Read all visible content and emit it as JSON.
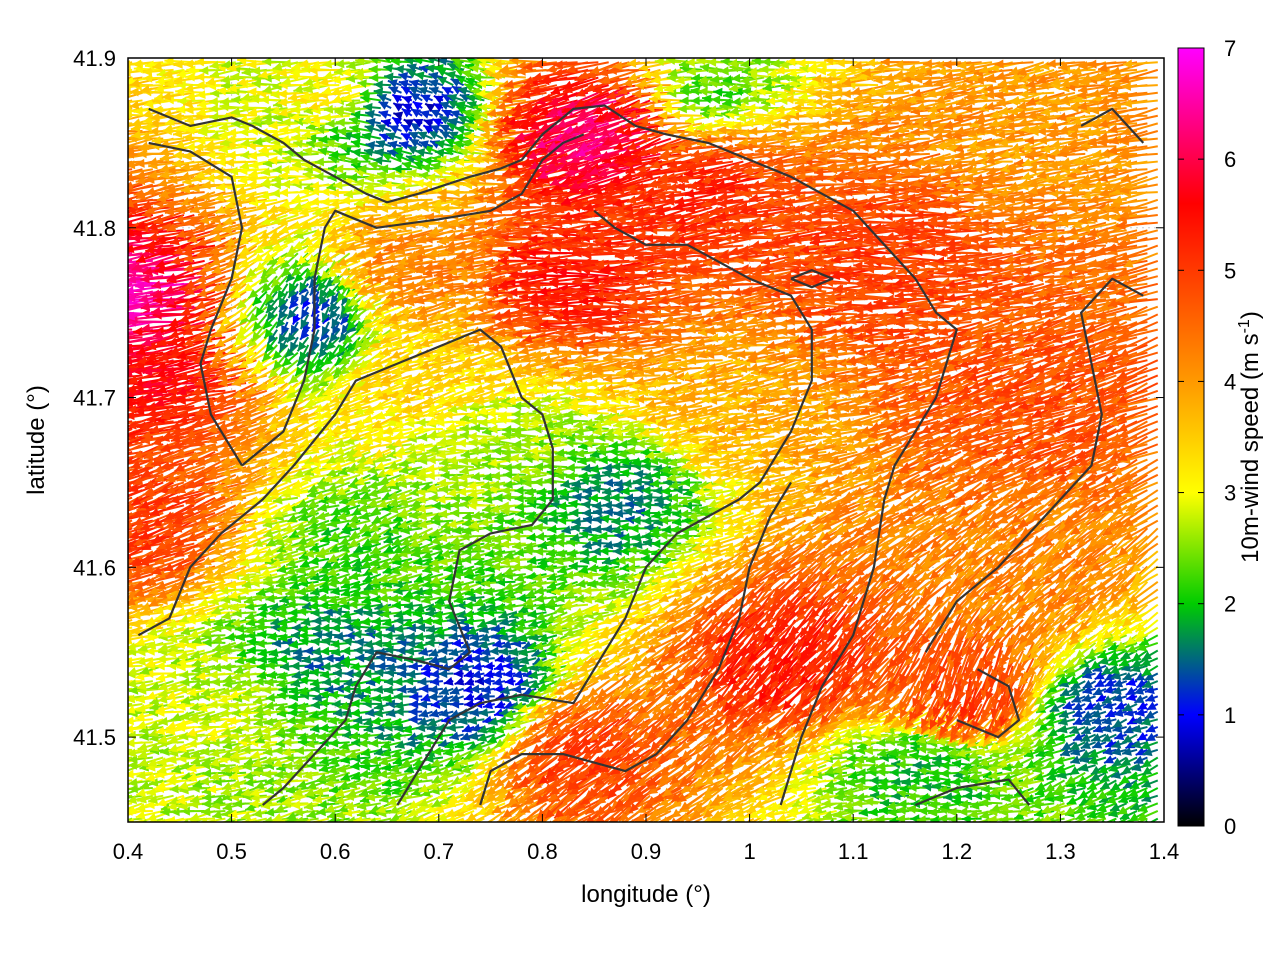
{
  "chart_data": {
    "type": "quiver",
    "title": "",
    "xlabel": "longitude (°)",
    "ylabel": "latitude (°)",
    "colorbar_label": "10m-wind speed (m s",
    "colorbar_label_sup": "-1",
    "colorbar_label_end": ")",
    "xlim": [
      0.4,
      1.4
    ],
    "ylim": [
      41.45,
      41.9
    ],
    "xticks": [
      0.4,
      0.5,
      0.6,
      0.7,
      0.8,
      0.9,
      1.0,
      1.1,
      1.2,
      1.3,
      1.4
    ],
    "xtick_labels": [
      "0.4",
      "0.5",
      "0.6",
      "0.7",
      "0.8",
      "0.9",
      "1",
      "1.1",
      "1.2",
      "1.3",
      "1.4"
    ],
    "yticks": [
      41.5,
      41.6,
      41.7,
      41.8,
      41.9
    ],
    "ytick_labels": [
      "41.5",
      "41.6",
      "41.7",
      "41.8",
      "41.9"
    ],
    "clim": [
      0,
      7
    ],
    "cticks": [
      0,
      1,
      2,
      3,
      4,
      5,
      6,
      7
    ],
    "ctick_labels": [
      "0",
      "1",
      "2",
      "3",
      "4",
      "5",
      "6",
      "7"
    ],
    "colormap": [
      "#000000",
      "#0000ff",
      "#00cc00",
      "#ffff00",
      "#ff9900",
      "#ff0000",
      "#ff00ff"
    ],
    "colormap_stops": [
      0,
      1,
      2,
      3,
      4,
      5.6,
      7
    ],
    "grid": true,
    "contour_color": "#333333",
    "wind_regions": [
      {
        "lon": 0.46,
        "lat": 41.72,
        "speed": 5.6,
        "dir_deg": 190
      },
      {
        "lon": 0.43,
        "lat": 41.76,
        "speed": 6.6,
        "dir_deg": 185
      },
      {
        "lon": 0.44,
        "lat": 41.63,
        "speed": 5.0,
        "dir_deg": 200
      },
      {
        "lon": 0.62,
        "lat": 41.88,
        "speed": 3.2,
        "dir_deg": 190
      },
      {
        "lon": 0.67,
        "lat": 41.87,
        "speed": 0.8,
        "dir_deg": 150
      },
      {
        "lon": 0.88,
        "lat": 41.86,
        "speed": 6.3,
        "dir_deg": 200
      },
      {
        "lon": 0.98,
        "lat": 41.83,
        "speed": 5.2,
        "dir_deg": 190
      },
      {
        "lon": 0.85,
        "lat": 41.77,
        "speed": 5.4,
        "dir_deg": 180
      },
      {
        "lon": 1.15,
        "lat": 41.78,
        "speed": 5.0,
        "dir_deg": 180
      },
      {
        "lon": 1.28,
        "lat": 41.7,
        "speed": 4.8,
        "dir_deg": 200
      },
      {
        "lon": 0.78,
        "lat": 41.67,
        "speed": 2.6,
        "dir_deg": 180
      },
      {
        "lon": 0.88,
        "lat": 41.64,
        "speed": 1.6,
        "dir_deg": 180
      },
      {
        "lon": 0.63,
        "lat": 41.62,
        "speed": 2.2,
        "dir_deg": 200
      },
      {
        "lon": 0.6,
        "lat": 41.55,
        "speed": 1.6,
        "dir_deg": 180
      },
      {
        "lon": 0.75,
        "lat": 41.53,
        "speed": 1.0,
        "dir_deg": 190
      },
      {
        "lon": 0.58,
        "lat": 41.75,
        "speed": 1.2,
        "dir_deg": 240
      },
      {
        "lon": 1.05,
        "lat": 41.56,
        "speed": 5.3,
        "dir_deg": 230
      },
      {
        "lon": 1.23,
        "lat": 41.54,
        "speed": 5.0,
        "dir_deg": 250
      },
      {
        "lon": 0.85,
        "lat": 41.5,
        "speed": 5.0,
        "dir_deg": 220
      },
      {
        "lon": 1.18,
        "lat": 41.48,
        "speed": 2.0,
        "dir_deg": 180
      },
      {
        "lon": 1.35,
        "lat": 41.52,
        "speed": 1.2,
        "dir_deg": 200
      },
      {
        "lon": 0.98,
        "lat": 41.88,
        "speed": 2.2,
        "dir_deg": 180
      },
      {
        "lon": 1.3,
        "lat": 41.86,
        "speed": 4.0,
        "dir_deg": 190
      },
      {
        "lon": 1.28,
        "lat": 41.6,
        "speed": 4.2,
        "dir_deg": 220
      },
      {
        "lon": 1.0,
        "lat": 41.7,
        "speed": 3.8,
        "dir_deg": 190
      },
      {
        "lon": 0.7,
        "lat": 41.78,
        "speed": 4.2,
        "dir_deg": 190
      },
      {
        "lon": 0.5,
        "lat": 41.52,
        "speed": 2.8,
        "dir_deg": 190
      },
      {
        "lon": 0.7,
        "lat": 41.72,
        "speed": 3.4,
        "dir_deg": 200
      }
    ],
    "contours": [
      [
        [
          0.42,
          41.87
        ],
        [
          0.46,
          41.86
        ],
        [
          0.5,
          41.865
        ],
        [
          0.52,
          41.86
        ],
        [
          0.55,
          41.85
        ],
        [
          0.57,
          41.84
        ],
        [
          0.6,
          41.83
        ],
        [
          0.63,
          41.82
        ],
        [
          0.65,
          41.815
        ],
        [
          0.68,
          41.82
        ],
        [
          0.73,
          41.83
        ],
        [
          0.76,
          41.835
        ],
        [
          0.78,
          41.84
        ],
        [
          0.8,
          41.855
        ],
        [
          0.83,
          41.87
        ],
        [
          0.86,
          41.872
        ],
        [
          0.89,
          41.86
        ],
        [
          0.92,
          41.855
        ],
        [
          0.96,
          41.85
        ],
        [
          1.0,
          41.84
        ],
        [
          1.04,
          41.83
        ],
        [
          1.07,
          41.82
        ],
        [
          1.1,
          41.81
        ],
        [
          1.13,
          41.79
        ],
        [
          1.16,
          41.77
        ],
        [
          1.18,
          41.75
        ],
        [
          1.2,
          41.74
        ],
        [
          1.19,
          41.72
        ],
        [
          1.18,
          41.7
        ],
        [
          1.16,
          41.68
        ],
        [
          1.14,
          41.66
        ],
        [
          1.13,
          41.64
        ],
        [
          1.12,
          41.6
        ],
        [
          1.1,
          41.56
        ],
        [
          1.07,
          41.53
        ],
        [
          1.05,
          41.5
        ],
        [
          1.03,
          41.46
        ]
      ],
      [
        [
          0.42,
          41.85
        ],
        [
          0.46,
          41.845
        ],
        [
          0.5,
          41.83
        ],
        [
          0.51,
          41.8
        ],
        [
          0.5,
          41.77
        ],
        [
          0.48,
          41.74
        ],
        [
          0.47,
          41.72
        ],
        [
          0.48,
          41.69
        ],
        [
          0.5,
          41.67
        ],
        [
          0.51,
          41.66
        ]
      ],
      [
        [
          0.51,
          41.66
        ],
        [
          0.55,
          41.68
        ],
        [
          0.57,
          41.71
        ],
        [
          0.58,
          41.74
        ],
        [
          0.58,
          41.77
        ],
        [
          0.59,
          41.8
        ],
        [
          0.6,
          41.81
        ],
        [
          0.64,
          41.8
        ],
        [
          0.7,
          41.805
        ],
        [
          0.75,
          41.81
        ],
        [
          0.78,
          41.82
        ],
        [
          0.8,
          41.84
        ],
        [
          0.82,
          41.85
        ],
        [
          0.84,
          41.855
        ]
      ],
      [
        [
          0.41,
          41.56
        ],
        [
          0.44,
          41.57
        ],
        [
          0.46,
          41.6
        ],
        [
          0.49,
          41.62
        ],
        [
          0.53,
          41.64
        ],
        [
          0.56,
          41.66
        ],
        [
          0.6,
          41.69
        ],
        [
          0.62,
          41.71
        ],
        [
          0.66,
          41.72
        ],
        [
          0.7,
          41.73
        ],
        [
          0.74,
          41.74
        ],
        [
          0.76,
          41.73
        ],
        [
          0.78,
          41.7
        ],
        [
          0.8,
          41.69
        ],
        [
          0.81,
          41.67
        ],
        [
          0.81,
          41.64
        ],
        [
          0.79,
          41.625
        ],
        [
          0.75,
          41.62
        ],
        [
          0.72,
          41.61
        ],
        [
          0.71,
          41.58
        ],
        [
          0.73,
          41.55
        ],
        [
          0.71,
          41.54
        ],
        [
          0.68,
          41.545
        ],
        [
          0.64,
          41.55
        ],
        [
          0.62,
          41.53
        ],
        [
          0.61,
          41.51
        ],
        [
          0.58,
          41.49
        ],
        [
          0.55,
          41.47
        ],
        [
          0.53,
          41.46
        ]
      ],
      [
        [
          0.66,
          41.46
        ],
        [
          0.69,
          41.49
        ],
        [
          0.71,
          41.51
        ],
        [
          0.74,
          41.52
        ],
        [
          0.78,
          41.525
        ],
        [
          0.83,
          41.52
        ],
        [
          0.85,
          41.54
        ],
        [
          0.88,
          41.57
        ],
        [
          0.9,
          41.6
        ],
        [
          0.93,
          41.62
        ],
        [
          0.96,
          41.63
        ],
        [
          0.99,
          41.64
        ],
        [
          1.01,
          41.65
        ],
        [
          1.04,
          41.68
        ],
        [
          1.06,
          41.71
        ],
        [
          1.06,
          41.74
        ],
        [
          1.04,
          41.76
        ],
        [
          1.0,
          41.77
        ],
        [
          0.97,
          41.78
        ],
        [
          0.94,
          41.79
        ],
        [
          0.9,
          41.79
        ],
        [
          0.87,
          41.8
        ],
        [
          0.85,
          41.81
        ]
      ],
      [
        [
          0.74,
          41.46
        ],
        [
          0.75,
          41.48
        ],
        [
          0.78,
          41.49
        ],
        [
          0.82,
          41.49
        ],
        [
          0.85,
          41.485
        ],
        [
          0.88,
          41.48
        ],
        [
          0.91,
          41.49
        ],
        [
          0.94,
          41.51
        ],
        [
          0.97,
          41.54
        ],
        [
          0.99,
          41.57
        ],
        [
          1.0,
          41.6
        ],
        [
          1.02,
          41.63
        ],
        [
          1.04,
          41.65
        ]
      ],
      [
        [
          1.16,
          41.46
        ],
        [
          1.2,
          41.47
        ],
        [
          1.25,
          41.475
        ],
        [
          1.27,
          41.46
        ]
      ],
      [
        [
          1.2,
          41.51
        ],
        [
          1.24,
          41.5
        ],
        [
          1.26,
          41.51
        ],
        [
          1.25,
          41.53
        ],
        [
          1.22,
          41.54
        ]
      ],
      [
        [
          1.17,
          41.55
        ],
        [
          1.2,
          41.58
        ],
        [
          1.24,
          41.6
        ],
        [
          1.27,
          41.62
        ],
        [
          1.3,
          41.64
        ],
        [
          1.33,
          41.66
        ],
        [
          1.34,
          41.69
        ],
        [
          1.33,
          41.72
        ],
        [
          1.32,
          41.75
        ],
        [
          1.35,
          41.77
        ],
        [
          1.38,
          41.76
        ]
      ],
      [
        [
          1.32,
          41.86
        ],
        [
          1.35,
          41.87
        ],
        [
          1.38,
          41.85
        ]
      ],
      [
        [
          1.04,
          41.77
        ],
        [
          1.06,
          41.765
        ],
        [
          1.08,
          41.77
        ],
        [
          1.06,
          41.775
        ],
        [
          1.04,
          41.77
        ]
      ]
    ]
  }
}
